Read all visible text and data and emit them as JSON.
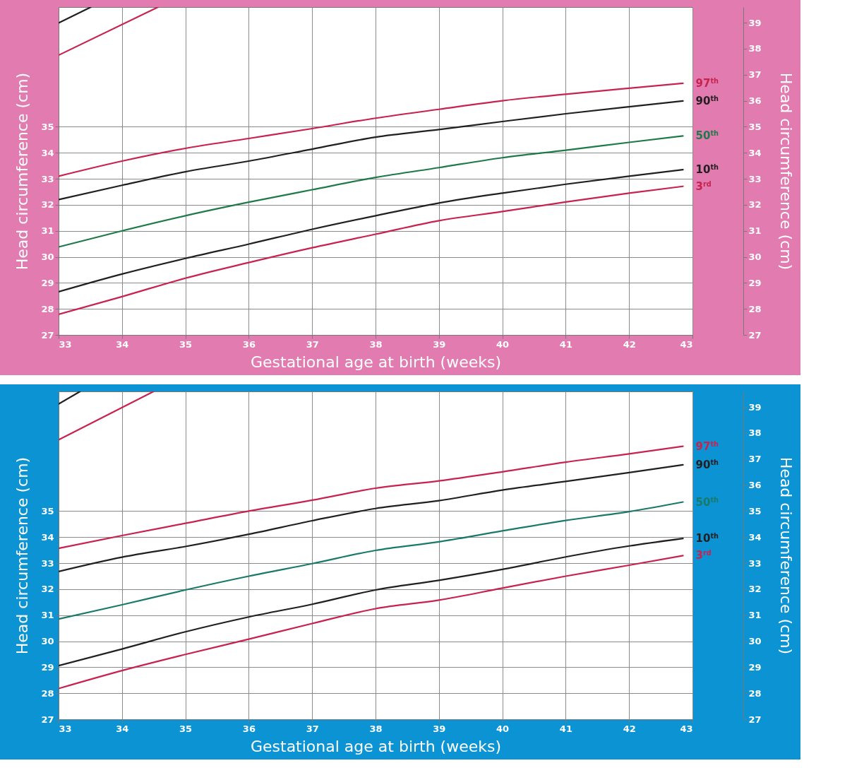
{
  "chart_data": [
    {
      "type": "line",
      "xlabel": "Gestational age at birth (weeks)",
      "ylabel": "Head circumference (cm)",
      "y2label": "Head circumference (cm)",
      "x": [
        33,
        34,
        35,
        36,
        37,
        38,
        39,
        40,
        41,
        42,
        42.85
      ],
      "xlim": [
        33,
        43
      ],
      "xticks": [
        33,
        34,
        35,
        36,
        37,
        38,
        39,
        40,
        41,
        42,
        43
      ],
      "ylim": [
        27,
        39.6
      ],
      "yticks": [
        27,
        28,
        29,
        30,
        31,
        32,
        33,
        34,
        35
      ],
      "y2lim": [
        27,
        39.6
      ],
      "y2ticks": [
        27,
        28,
        29,
        30,
        31,
        32,
        33,
        34,
        35,
        36,
        37,
        38,
        39
      ],
      "grid": true,
      "series": [
        {
          "name": "97$^{th}$",
          "color": "#c8234f",
          "values": [
            33.1,
            33.68,
            34.17,
            34.55,
            34.93,
            35.33,
            35.67,
            36.0,
            36.25,
            36.48,
            36.67
          ]
        },
        {
          "name": "90$^{th}$",
          "color": "#231f20",
          "values": [
            32.2,
            32.75,
            33.27,
            33.68,
            34.14,
            34.6,
            34.89,
            35.2,
            35.5,
            35.77,
            35.99
          ]
        },
        {
          "name": "50$^{th}$",
          "color": "#1f7a4a",
          "values": [
            30.38,
            31.0,
            31.58,
            32.1,
            32.58,
            33.05,
            33.43,
            33.81,
            34.1,
            34.4,
            34.65
          ]
        },
        {
          "name": "10$^{th}$",
          "color": "#231f20",
          "values": [
            28.66,
            29.34,
            29.94,
            30.49,
            31.06,
            31.58,
            32.07,
            32.45,
            32.79,
            33.1,
            33.35
          ]
        },
        {
          "name": "3$^{rd}$",
          "color": "#c8234f",
          "values": [
            27.79,
            28.47,
            29.18,
            29.78,
            30.35,
            30.87,
            31.39,
            31.74,
            32.11,
            32.45,
            32.71
          ]
        },
        {
          "color": "#231f20",
          "x": [
            33,
            33.51
          ],
          "values": [
            38.99,
            39.6
          ]
        },
        {
          "color": "#c8234f",
          "x": [
            33,
            34.57
          ],
          "values": [
            37.75,
            39.6
          ]
        }
      ]
    },
    {
      "type": "line",
      "xlabel": "Gestational age at birth (weeks)",
      "ylabel": "Head circumference (cm)",
      "y2label": "Head circumference (cm)",
      "x": [
        33,
        34,
        35,
        36,
        37,
        38,
        39,
        40,
        41,
        42,
        42.85
      ],
      "xlim": [
        33,
        43
      ],
      "xticks": [
        33,
        34,
        35,
        36,
        37,
        38,
        39,
        40,
        41,
        42,
        43
      ],
      "ylim": [
        27,
        39.6
      ],
      "yticks": [
        27,
        28,
        29,
        30,
        31,
        32,
        33,
        34,
        35
      ],
      "y2lim": [
        27,
        39.6
      ],
      "y2ticks": [
        27,
        28,
        29,
        30,
        31,
        32,
        33,
        34,
        35,
        36,
        37,
        38,
        39
      ],
      "grid": true,
      "series": [
        {
          "name": "97$^{th}$",
          "color": "#c8234f",
          "values": [
            33.57,
            34.06,
            34.53,
            35.0,
            35.42,
            35.88,
            36.16,
            36.51,
            36.88,
            37.2,
            37.49
          ]
        },
        {
          "name": "90$^{th}$",
          "color": "#231f20",
          "values": [
            32.68,
            33.23,
            33.64,
            34.11,
            34.63,
            35.1,
            35.4,
            35.81,
            36.14,
            36.48,
            36.78
          ]
        },
        {
          "name": "50$^{th}$",
          "color": "#1a7a6a",
          "values": [
            30.85,
            31.4,
            31.97,
            32.5,
            32.98,
            33.49,
            33.82,
            34.24,
            34.64,
            34.98,
            35.35
          ]
        },
        {
          "name": "10$^{th}$",
          "color": "#231f20",
          "values": [
            29.06,
            29.7,
            30.36,
            30.93,
            31.42,
            31.97,
            32.34,
            32.76,
            33.24,
            33.66,
            33.95
          ]
        },
        {
          "name": "3$^{rd}$",
          "color": "#c8234f",
          "values": [
            28.18,
            28.87,
            29.49,
            30.08,
            30.68,
            31.25,
            31.58,
            32.04,
            32.5,
            32.92,
            33.29
          ]
        },
        {
          "color": "#231f20",
          "x": [
            33,
            33.34
          ],
          "values": [
            39.12,
            39.6
          ]
        },
        {
          "color": "#c8234f",
          "x": [
            33,
            34.5
          ],
          "values": [
            37.74,
            39.6
          ]
        }
      ]
    }
  ]
}
